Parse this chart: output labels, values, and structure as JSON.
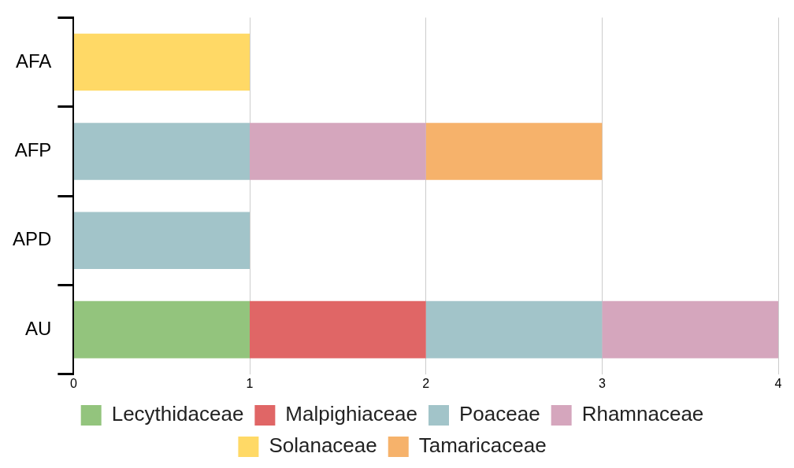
{
  "chart_data": {
    "type": "bar",
    "orientation": "horizontal",
    "stacked": true,
    "categories": [
      "AFA",
      "AFP",
      "APD",
      "AU"
    ],
    "series": [
      {
        "name": "Lecythidaceae",
        "color": "#93c47d",
        "values": [
          null,
          null,
          null,
          1
        ]
      },
      {
        "name": "Malpighiaceae",
        "color": "#e06666",
        "values": [
          null,
          null,
          null,
          1
        ]
      },
      {
        "name": "Poaceae",
        "color": "#a2c4c9",
        "values": [
          null,
          1,
          1,
          1
        ]
      },
      {
        "name": "Rhamnaceae",
        "color": "#d5a6bd",
        "values": [
          null,
          1,
          null,
          1
        ]
      },
      {
        "name": "Solanaceae",
        "color": "#ffd966",
        "values": [
          1,
          null,
          null,
          null
        ]
      },
      {
        "name": "Tamaricaceae",
        "color": "#f6b26b",
        "values": [
          null,
          1,
          null,
          null
        ]
      }
    ],
    "xlim": [
      0,
      4
    ],
    "xticks": [
      0,
      1,
      2,
      3,
      4
    ],
    "grid": "x",
    "legend": "bottom"
  }
}
